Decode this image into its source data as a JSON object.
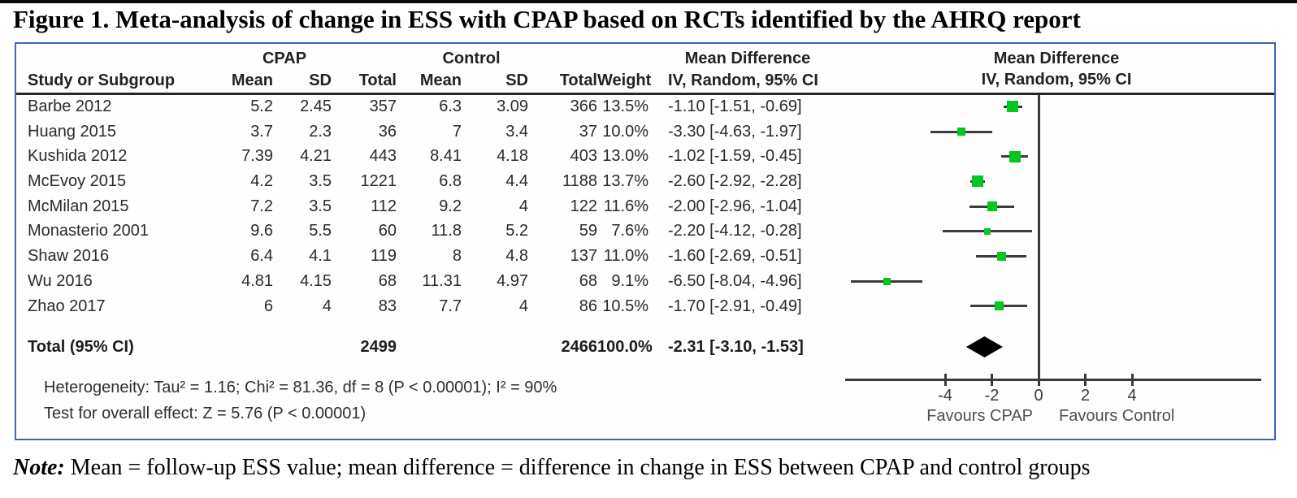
{
  "figure": {
    "title": "Figure 1. Meta-analysis of change in ESS with CPAP based on RCTs identified by the AHRQ report"
  },
  "table": {
    "group_headers": {
      "cpap": "CPAP",
      "control": "Control",
      "md_text": "Mean Difference",
      "md_plot": "Mean Difference"
    },
    "col_headers": {
      "study": "Study or Subgroup",
      "cpap_mean": "Mean",
      "cpap_sd": "SD",
      "cpap_total": "Total",
      "ctrl_mean": "Mean",
      "ctrl_sd": "SD",
      "ctrl_total": "Total",
      "weight": "Weight",
      "ci": "IV, Random, 95% CI",
      "ci_plot": "IV, Random, 95% CI"
    },
    "rows": [
      {
        "study": "Barbe 2012",
        "cpap_mean": "5.2",
        "cpap_sd": "2.45",
        "cpap_total": "357",
        "ctrl_mean": "6.3",
        "ctrl_sd": "3.09",
        "ctrl_total": "366",
        "weight": "13.5%",
        "ci_text": "-1.10 [-1.51, -0.69]"
      },
      {
        "study": "Huang 2015",
        "cpap_mean": "3.7",
        "cpap_sd": "2.3",
        "cpap_total": "36",
        "ctrl_mean": "7",
        "ctrl_sd": "3.4",
        "ctrl_total": "37",
        "weight": "10.0%",
        "ci_text": "-3.30 [-4.63, -1.97]"
      },
      {
        "study": "Kushida 2012",
        "cpap_mean": "7.39",
        "cpap_sd": "4.21",
        "cpap_total": "443",
        "ctrl_mean": "8.41",
        "ctrl_sd": "4.18",
        "ctrl_total": "403",
        "weight": "13.0%",
        "ci_text": "-1.02 [-1.59, -0.45]"
      },
      {
        "study": "McEvoy 2015",
        "cpap_mean": "4.2",
        "cpap_sd": "3.5",
        "cpap_total": "1221",
        "ctrl_mean": "6.8",
        "ctrl_sd": "4.4",
        "ctrl_total": "1188",
        "weight": "13.7%",
        "ci_text": "-2.60 [-2.92, -2.28]"
      },
      {
        "study": "McMilan 2015",
        "cpap_mean": "7.2",
        "cpap_sd": "3.5",
        "cpap_total": "112",
        "ctrl_mean": "9.2",
        "ctrl_sd": "4",
        "ctrl_total": "122",
        "weight": "11.6%",
        "ci_text": "-2.00 [-2.96, -1.04]"
      },
      {
        "study": "Monasterio 2001",
        "cpap_mean": "9.6",
        "cpap_sd": "5.5",
        "cpap_total": "60",
        "ctrl_mean": "11.8",
        "ctrl_sd": "5.2",
        "ctrl_total": "59",
        "weight": "7.6%",
        "ci_text": "-2.20 [-4.12, -0.28]"
      },
      {
        "study": "Shaw 2016",
        "cpap_mean": "6.4",
        "cpap_sd": "4.1",
        "cpap_total": "119",
        "ctrl_mean": "8",
        "ctrl_sd": "4.8",
        "ctrl_total": "137",
        "weight": "11.0%",
        "ci_text": "-1.60 [-2.69, -0.51]"
      },
      {
        "study": "Wu 2016",
        "cpap_mean": "4.81",
        "cpap_sd": "4.15",
        "cpap_total": "68",
        "ctrl_mean": "11.31",
        "ctrl_sd": "4.97",
        "ctrl_total": "68",
        "weight": "9.1%",
        "ci_text": "-6.50 [-8.04, -4.96]"
      },
      {
        "study": "Zhao 2017",
        "cpap_mean": "6",
        "cpap_sd": "4",
        "cpap_total": "83",
        "ctrl_mean": "7.7",
        "ctrl_sd": "4",
        "ctrl_total": "86",
        "weight": "10.5%",
        "ci_text": "-1.70 [-2.91, -0.49]"
      }
    ],
    "total": {
      "label": "Total (95% CI)",
      "cpap_total": "2499",
      "ctrl_total": "2466",
      "weight": "100.0%",
      "ci_text": "-2.31 [-3.10, -1.53]"
    },
    "heterogeneity": "Heterogeneity: Tau² = 1.16; Chi² = 81.36, df = 8 (P < 0.00001); I² = 90%",
    "overall_effect": "Test for overall effect: Z = 5.76 (P < 0.00001)"
  },
  "plot": {
    "ticks": [
      -4,
      -2,
      0,
      2,
      4
    ],
    "favours_left": "Favours CPAP",
    "favours_right": "Favours Control",
    "marker_color": "#00c81e",
    "line_color": "#3c3c3c",
    "diamond_color": "#000000",
    "border_color": "#3f63b5"
  },
  "note": {
    "label": "Note:",
    "text": " Mean = follow-up ESS value; mean difference = difference in change in ESS between CPAP and control groups"
  },
  "chart_data": {
    "type": "forest",
    "title": "Figure 1. Meta-analysis of change in ESS with CPAP based on RCTs identified by the AHRQ report",
    "effect_measure": "Mean Difference, IV, Random, 95% CI",
    "studies": [
      {
        "label": "Barbe 2012",
        "md": -1.1,
        "ci": [
          -1.51,
          -0.69
        ],
        "weight_pct": 13.5
      },
      {
        "label": "Huang 2015",
        "md": -3.3,
        "ci": [
          -4.63,
          -1.97
        ],
        "weight_pct": 10.0
      },
      {
        "label": "Kushida 2012",
        "md": -1.02,
        "ci": [
          -1.59,
          -0.45
        ],
        "weight_pct": 13.0
      },
      {
        "label": "McEvoy 2015",
        "md": -2.6,
        "ci": [
          -2.92,
          -2.28
        ],
        "weight_pct": 13.7
      },
      {
        "label": "McMilan 2015",
        "md": -2.0,
        "ci": [
          -2.96,
          -1.04
        ],
        "weight_pct": 11.6
      },
      {
        "label": "Monasterio 2001",
        "md": -2.2,
        "ci": [
          -4.12,
          -0.28
        ],
        "weight_pct": 7.6
      },
      {
        "label": "Shaw 2016",
        "md": -1.6,
        "ci": [
          -2.69,
          -0.51
        ],
        "weight_pct": 11.0
      },
      {
        "label": "Wu 2016",
        "md": -6.5,
        "ci": [
          -8.04,
          -4.96
        ],
        "weight_pct": 9.1
      },
      {
        "label": "Zhao 2017",
        "md": -1.7,
        "ci": [
          -2.91,
          -0.49
        ],
        "weight_pct": 10.5
      }
    ],
    "total": {
      "label": "Total (95% CI)",
      "md": -2.31,
      "ci": [
        -3.1,
        -1.53
      ],
      "weight_pct": 100.0
    },
    "xticks": [
      -4,
      -2,
      0,
      2,
      4
    ],
    "xlim_displayed": [
      -9,
      10
    ],
    "xlabel_left": "Favours CPAP",
    "xlabel_right": "Favours Control",
    "heterogeneity": "Tau² = 1.16; Chi² = 81.36, df = 8 (P < 0.00001); I² = 90%",
    "overall_effect": "Z = 5.76 (P < 0.00001)"
  }
}
